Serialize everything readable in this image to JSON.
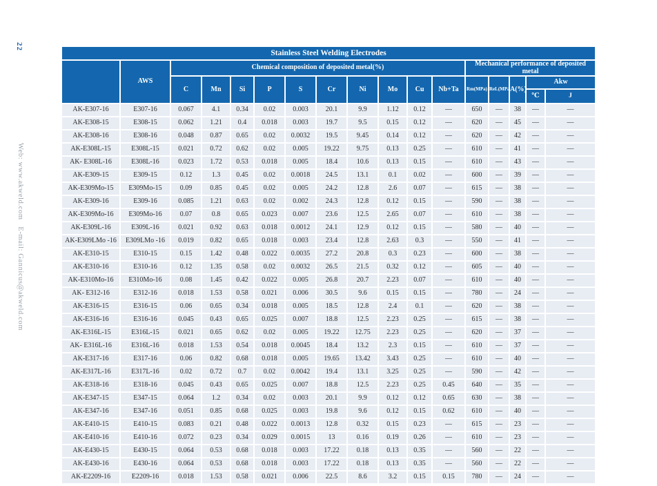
{
  "page": {
    "number": "22",
    "side_text": "Web: www.akweld.com   E-mail: Gannicus@akweld.com"
  },
  "colors": {
    "header_blue": "#1467ae",
    "row_bg": "#e8edf4",
    "page_number_blue": "#1d5fa8",
    "side_text_gray": "#9aa2ab"
  },
  "table": {
    "title": "Stainless Steel Welding Electrodes",
    "headers": {
      "model": "",
      "aws": "AWS",
      "chemical_group": "Chemical  composition of deposited metal(%)",
      "mechanical_group": "Mechanical performance of deposited metal",
      "elements": [
        "C",
        "Mn",
        "Si",
        "P",
        "S",
        "Cr",
        "Ni",
        "Mo",
        "Cu",
        "Nb+Ta"
      ],
      "rm": "Rm(MPa)",
      "rel": "ReL(MPa)",
      "a": "A(%)",
      "akw": "Akw",
      "akw_c": "℃",
      "akw_j": "J"
    },
    "column_keys": [
      "model",
      "aws",
      "c",
      "mn",
      "si",
      "p",
      "s",
      "cr",
      "ni",
      "mo",
      "cu",
      "nbta",
      "rm",
      "rel",
      "a",
      "akw-c",
      "akw-j"
    ],
    "rows": [
      [
        "AK-E307-16",
        "E307-16",
        "0.067",
        "4.1",
        "0.34",
        "0.02",
        "0.003",
        "20.1",
        "9.9",
        "1.12",
        "0.12",
        "—",
        "650",
        "—",
        "38",
        "—",
        "—"
      ],
      [
        "AK-E308-15",
        "E308-15",
        "0.062",
        "1.21",
        "0.4",
        "0.018",
        "0.003",
        "19.7",
        "9.5",
        "0.15",
        "0.12",
        "—",
        "620",
        "—",
        "45",
        "—",
        "—"
      ],
      [
        "AK-E308-16",
        "E308-16",
        "0.048",
        "0.87",
        "0.65",
        "0.02",
        "0.0032",
        "19.5",
        "9.45",
        "0.14",
        "0.12",
        "—",
        "620",
        "—",
        "42",
        "—",
        "—"
      ],
      [
        "AK-E308L-15",
        "E308L-15",
        "0.021",
        "0.72",
        "0.62",
        "0.02",
        "0.005",
        "19.22",
        "9.75",
        "0.13",
        "0.25",
        "—",
        "610",
        "—",
        "41",
        "—",
        "—"
      ],
      [
        "AK- E308L-16",
        "E308L-16",
        "0.023",
        "1.72",
        "0.53",
        "0.018",
        "0.005",
        "18.4",
        "10.6",
        "0.13",
        "0.15",
        "—",
        "610",
        "—",
        "43",
        "—",
        "—"
      ],
      [
        "AK-E309-15",
        "E309-15",
        "0.12",
        "1.3",
        "0.45",
        "0.02",
        "0.0018",
        "24.5",
        "13.1",
        "0.1",
        "0.02",
        "—",
        "600",
        "—",
        "39",
        "—",
        "—"
      ],
      [
        "AK-E309Mo-15",
        "E309Mo-15",
        "0.09",
        "0.85",
        "0.45",
        "0.02",
        "0.005",
        "24.2",
        "12.8",
        "2.6",
        "0.07",
        "—",
        "615",
        "—",
        "38",
        "—",
        "—"
      ],
      [
        "AK-E309-16",
        "E309-16",
        "0.085",
        "1.21",
        "0.63",
        "0.02",
        "0.002",
        "24.3",
        "12.8",
        "0.12",
        "0.15",
        "—",
        "590",
        "—",
        "38",
        "—",
        "—"
      ],
      [
        "AK-E309Mo-16",
        "E309Mo-16",
        "0.07",
        "0.8",
        "0.65",
        "0.023",
        "0.007",
        "23.6",
        "12.5",
        "2.65",
        "0.07",
        "—",
        "610",
        "—",
        "38",
        "—",
        "—"
      ],
      [
        "AK-E309L-16",
        "E309L-16",
        "0.021",
        "0.92",
        "0.63",
        "0.018",
        "0.0012",
        "24.1",
        "12.9",
        "0.12",
        "0.15",
        "—",
        "580",
        "—",
        "40",
        "—",
        "—"
      ],
      [
        "AK-E309LMo -16",
        "E309LMo -16",
        "0.019",
        "0.82",
        "0.65",
        "0.018",
        "0.003",
        "23.4",
        "12.8",
        "2.63",
        "0.3",
        "—",
        "550",
        "—",
        "41",
        "—",
        "—"
      ],
      [
        "AK-E310-15",
        "E310-15",
        "0.15",
        "1.42",
        "0.48",
        "0.022",
        "0.0035",
        "27.2",
        "20.8",
        "0.3",
        "0.23",
        "—",
        "600",
        "—",
        "38",
        "—",
        "—"
      ],
      [
        "AK-E310-16",
        "E310-16",
        "0.12",
        "1.35",
        "0.58",
        "0.02",
        "0.0032",
        "26.5",
        "21.5",
        "0.32",
        "0.12",
        "—",
        "605",
        "—",
        "40",
        "—",
        "—"
      ],
      [
        "AK-E310Mo-16",
        "E310Mo-16",
        "0.08",
        "1.45",
        "0.42",
        "0.022",
        "0.005",
        "26.8",
        "20.7",
        "2.23",
        "0.07",
        "—",
        "610",
        "—",
        "40",
        "—",
        "—"
      ],
      [
        "AK- E312-16",
        "E312-16",
        "0.018",
        "1.53",
        "0.58",
        "0.021",
        "0.006",
        "30.5",
        "9.6",
        "0.15",
        "0.15",
        "—",
        "780",
        "—",
        "24",
        "—",
        "—"
      ],
      [
        "AK-E316-15",
        "E316-15",
        "0.06",
        "0.65",
        "0.34",
        "0.018",
        "0.005",
        "18.5",
        "12.8",
        "2.4",
        "0.1",
        "—",
        "620",
        "—",
        "38",
        "—",
        "—"
      ],
      [
        "AK-E316-16",
        "E316-16",
        "0.045",
        "0.43",
        "0.65",
        "0.025",
        "0.007",
        "18.8",
        "12.5",
        "2.23",
        "0.25",
        "—",
        "615",
        "—",
        "38",
        "—",
        "—"
      ],
      [
        "AK-E316L-15",
        "E316L-15",
        "0.021",
        "0.65",
        "0.62",
        "0.02",
        "0.005",
        "19.22",
        "12.75",
        "2.23",
        "0.25",
        "—",
        "620",
        "—",
        "37",
        "—",
        "—"
      ],
      [
        "AK- E316L-16",
        "E316L-16",
        "0.018",
        "1.53",
        "0.54",
        "0.018",
        "0.0045",
        "18.4",
        "13.2",
        "2.3",
        "0.15",
        "—",
        "610",
        "—",
        "37",
        "—",
        "—"
      ],
      [
        "AK-E317-16",
        "E317-16",
        "0.06",
        "0.82",
        "0.68",
        "0.018",
        "0.005",
        "19.65",
        "13.42",
        "3.43",
        "0.25",
        "—",
        "610",
        "—",
        "40",
        "—",
        "—"
      ],
      [
        "AK-E317L-16",
        "E317L-16",
        "0.02",
        "0.72",
        "0.7",
        "0.02",
        "0.0042",
        "19.4",
        "13.1",
        "3.25",
        "0.25",
        "—",
        "590",
        "—",
        "42",
        "—",
        "—"
      ],
      [
        "AK-E318-16",
        "E318-16",
        "0.045",
        "0.43",
        "0.65",
        "0.025",
        "0.007",
        "18.8",
        "12.5",
        "2.23",
        "0.25",
        "0.45",
        "640",
        "—",
        "35",
        "—",
        "—"
      ],
      [
        "AK-E347-15",
        "E347-15",
        "0.064",
        "1.2",
        "0.34",
        "0.02",
        "0.003",
        "20.1",
        "9.9",
        "0.12",
        "0.12",
        "0.65",
        "630",
        "—",
        "38",
        "—",
        "—"
      ],
      [
        "AK-E347-16",
        "E347-16",
        "0.051",
        "0.85",
        "0.68",
        "0.025",
        "0.003",
        "19.8",
        "9.6",
        "0.12",
        "0.15",
        "0.62",
        "610",
        "—",
        "40",
        "—",
        "—"
      ],
      [
        "AK-E410-15",
        "E410-15",
        "0.083",
        "0.21",
        "0.48",
        "0.022",
        "0.0013",
        "12.8",
        "0.32",
        "0.15",
        "0.23",
        "—",
        "615",
        "—",
        "23",
        "—",
        "—"
      ],
      [
        "AK-E410-16",
        "E410-16",
        "0.072",
        "0.23",
        "0.34",
        "0.029",
        "0.0015",
        "13",
        "0.16",
        "0.19",
        "0.26",
        "—",
        "610",
        "—",
        "23",
        "—",
        "—"
      ],
      [
        "AK-E430-15",
        "E430-15",
        "0.064",
        "0.53",
        "0.68",
        "0.018",
        "0.003",
        "17.22",
        "0.18",
        "0.13",
        "0.35",
        "—",
        "560",
        "—",
        "22",
        "—",
        "—"
      ],
      [
        "AK-E430-16",
        "E430-16",
        "0.064",
        "0.53",
        "0.68",
        "0.018",
        "0.003",
        "17.22",
        "0.18",
        "0.13",
        "0.35",
        "—",
        "560",
        "—",
        "22",
        "—",
        "—"
      ],
      [
        "AK-E2209-16",
        "E2209-16",
        "0.018",
        "1.53",
        "0.58",
        "0.021",
        "0.006",
        "22.5",
        "8.6",
        "3.2",
        "0.15",
        "0.15",
        "780",
        "—",
        "24",
        "—",
        "—"
      ]
    ]
  }
}
